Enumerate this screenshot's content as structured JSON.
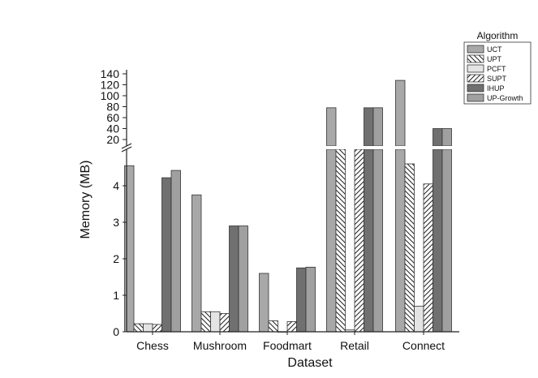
{
  "chart_data": {
    "type": "bar",
    "xlabel": "Dataset",
    "ylabel": "Memory (MB)",
    "legend_title": "Algorithm",
    "legend_position": "top-right",
    "categories": [
      "Chess",
      "Mushroom",
      "Foodmart",
      "Retail",
      "Connect"
    ],
    "axis_break": {
      "lower_range": [
        0,
        4.9
      ],
      "upper_range": [
        10,
        145
      ]
    },
    "lower_ticks": [
      "0",
      "1",
      "2",
      "3",
      "4"
    ],
    "upper_ticks": [
      "20",
      "40",
      "60",
      "80",
      "100",
      "120",
      "140"
    ],
    "series": [
      {
        "name": "UCT",
        "pattern": "solid-gray",
        "values": [
          4.55,
          3.75,
          1.6,
          78,
          128
        ]
      },
      {
        "name": "UPT",
        "pattern": "backslash-hatch",
        "values": [
          0.22,
          0.55,
          0.3,
          5.5,
          4.6
        ]
      },
      {
        "name": "PCFT",
        "pattern": "light-solid",
        "values": [
          0.22,
          0.55,
          0.0,
          0.05,
          0.7
        ]
      },
      {
        "name": "SUPT",
        "pattern": "slash-hatch",
        "values": [
          0.2,
          0.5,
          0.28,
          5.5,
          4.05
        ]
      },
      {
        "name": "IHUP",
        "pattern": "dark-solid",
        "values": [
          4.22,
          2.9,
          1.75,
          78,
          40
        ]
      },
      {
        "name": "UP-Growth",
        "pattern": "mid-solid",
        "values": [
          4.42,
          2.9,
          1.77,
          78,
          40
        ]
      }
    ]
  }
}
